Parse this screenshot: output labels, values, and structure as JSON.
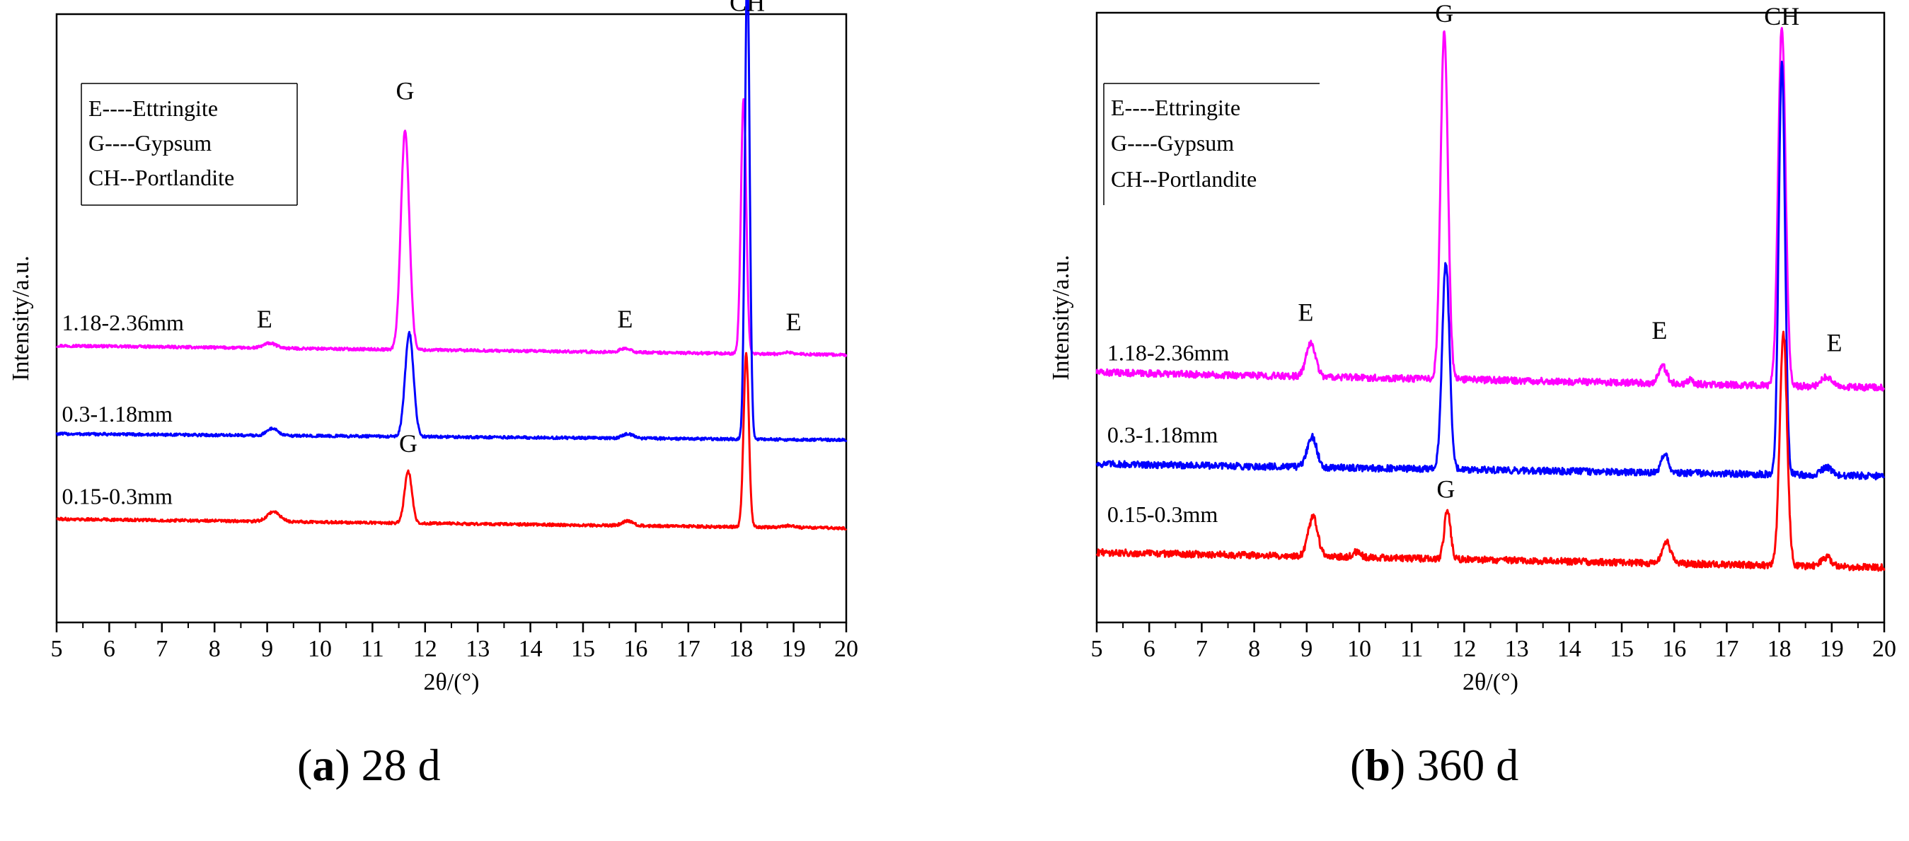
{
  "chart_data": [
    {
      "type": "line",
      "panel_id": "a",
      "caption_letter": "a",
      "caption_text": "28 d",
      "xlabel": "2θ/(°)",
      "ylabel": "Intensity/a.u.",
      "xlim": [
        5,
        20
      ],
      "x_ticks": [
        "5",
        "6",
        "7",
        "8",
        "9",
        "10",
        "11",
        "12",
        "13",
        "14",
        "15",
        "16",
        "17",
        "18",
        "19",
        "20"
      ],
      "ylim": [
        0,
        100
      ],
      "legend": [
        "E----Ettringite",
        "G----Gypsum",
        "CH--Portlandite"
      ],
      "series": [
        {
          "name": "1.18-2.36mm",
          "color": "#ff00ff",
          "baseline_start": 45.5,
          "baseline_end": 44.0,
          "peaks": [
            [
              9.05,
              0.8,
              0.12
            ],
            [
              11.62,
              36.0,
              0.08
            ],
            [
              15.8,
              0.6,
              0.1
            ],
            [
              18.05,
              42.0,
              0.05
            ],
            [
              18.9,
              0.3,
              0.1
            ]
          ]
        },
        {
          "name": "0.3-1.18mm",
          "color": "#0000ff",
          "baseline_start": 31.0,
          "baseline_end": 30.0,
          "peaks": [
            [
              9.1,
              1.2,
              0.1
            ],
            [
              11.7,
              17.0,
              0.08
            ],
            [
              15.85,
              0.7,
              0.1
            ],
            [
              18.12,
              78.0,
              0.045
            ]
          ]
        },
        {
          "name": "0.15-0.3mm",
          "color": "#ff0000",
          "baseline_start": 17.0,
          "baseline_end": 15.5,
          "peaks": [
            [
              9.12,
              1.6,
              0.12
            ],
            [
              11.68,
              8.5,
              0.07
            ],
            [
              15.85,
              0.8,
              0.1
            ],
            [
              18.1,
              28.5,
              0.05
            ],
            [
              18.9,
              0.3,
              0.1
            ]
          ]
        }
      ],
      "annotations": [
        {
          "text": "CH",
          "x": 18.12,
          "y": 100.5
        },
        {
          "text": "G",
          "x": 11.62,
          "y": 86.0
        },
        {
          "text": "E",
          "x": 8.95,
          "y": 48.5
        },
        {
          "text": "E",
          "x": 15.8,
          "y": 48.5
        },
        {
          "text": "E",
          "x": 19.0,
          "y": 48.0
        },
        {
          "text": "G",
          "x": 11.68,
          "y": 28.0
        },
        {
          "text": "1.18-2.36mm",
          "x": 5.1,
          "y": 48.0
        },
        {
          "text": "0.3-1.18mm",
          "x": 5.1,
          "y": 33.0
        },
        {
          "text": "0.15-0.3mm",
          "x": 5.1,
          "y": 19.5
        }
      ]
    },
    {
      "type": "line",
      "panel_id": "b",
      "caption_letter": "b",
      "caption_text": "360 d",
      "xlabel": "2θ/(°)",
      "ylabel": "Intensity/a.u.",
      "xlim": [
        5,
        20
      ],
      "x_ticks": [
        "5",
        "6",
        "7",
        "8",
        "9",
        "10",
        "11",
        "12",
        "13",
        "14",
        "15",
        "16",
        "17",
        "18",
        "19",
        "20"
      ],
      "ylim": [
        0,
        100
      ],
      "legend": [
        "E----Ettringite",
        "G----Gypsum",
        "CH--Portlandite"
      ],
      "series": [
        {
          "name": "1.18-2.36mm",
          "color": "#ff00ff",
          "baseline_start": 41.0,
          "baseline_end": 38.5,
          "peaks": [
            [
              9.08,
              5.5,
              0.09
            ],
            [
              11.62,
              57.0,
              0.07
            ],
            [
              15.78,
              2.8,
              0.08
            ],
            [
              16.3,
              0.8,
              0.04
            ],
            [
              18.05,
              59.0,
              0.07
            ],
            [
              18.9,
              1.5,
              0.1
            ]
          ]
        },
        {
          "name": "0.3-1.18mm",
          "color": "#0000ff",
          "baseline_start": 26.0,
          "baseline_end": 24.0,
          "peaks": [
            [
              9.1,
              5.0,
              0.09
            ],
            [
              11.65,
              34.0,
              0.07
            ],
            [
              15.82,
              3.2,
              0.07
            ],
            [
              18.05,
              68.0,
              0.06
            ],
            [
              18.9,
              1.3,
              0.1
            ]
          ]
        },
        {
          "name": "0.15-0.3mm",
          "color": "#ff0000",
          "baseline_start": 11.5,
          "baseline_end": 9.0,
          "peaks": [
            [
              9.12,
              6.5,
              0.09
            ],
            [
              9.95,
              0.9,
              0.08
            ],
            [
              11.68,
              8.0,
              0.06
            ],
            [
              15.85,
              3.5,
              0.08
            ],
            [
              18.08,
              38.0,
              0.07
            ],
            [
              18.9,
              1.5,
              0.1
            ]
          ]
        }
      ],
      "annotations": [
        {
          "text": "G",
          "x": 11.62,
          "y": 98.5
        },
        {
          "text": "CH",
          "x": 18.05,
          "y": 98.0
        },
        {
          "text": "E",
          "x": 8.98,
          "y": 49.5
        },
        {
          "text": "E",
          "x": 15.72,
          "y": 46.5
        },
        {
          "text": "E",
          "x": 19.05,
          "y": 44.5
        },
        {
          "text": "G",
          "x": 11.65,
          "y": 20.5
        },
        {
          "text": "1.18-2.36mm",
          "x": 5.2,
          "y": 43.0
        },
        {
          "text": "0.3-1.18mm",
          "x": 5.2,
          "y": 29.5
        },
        {
          "text": "0.15-0.3mm",
          "x": 5.2,
          "y": 16.5
        }
      ]
    }
  ]
}
